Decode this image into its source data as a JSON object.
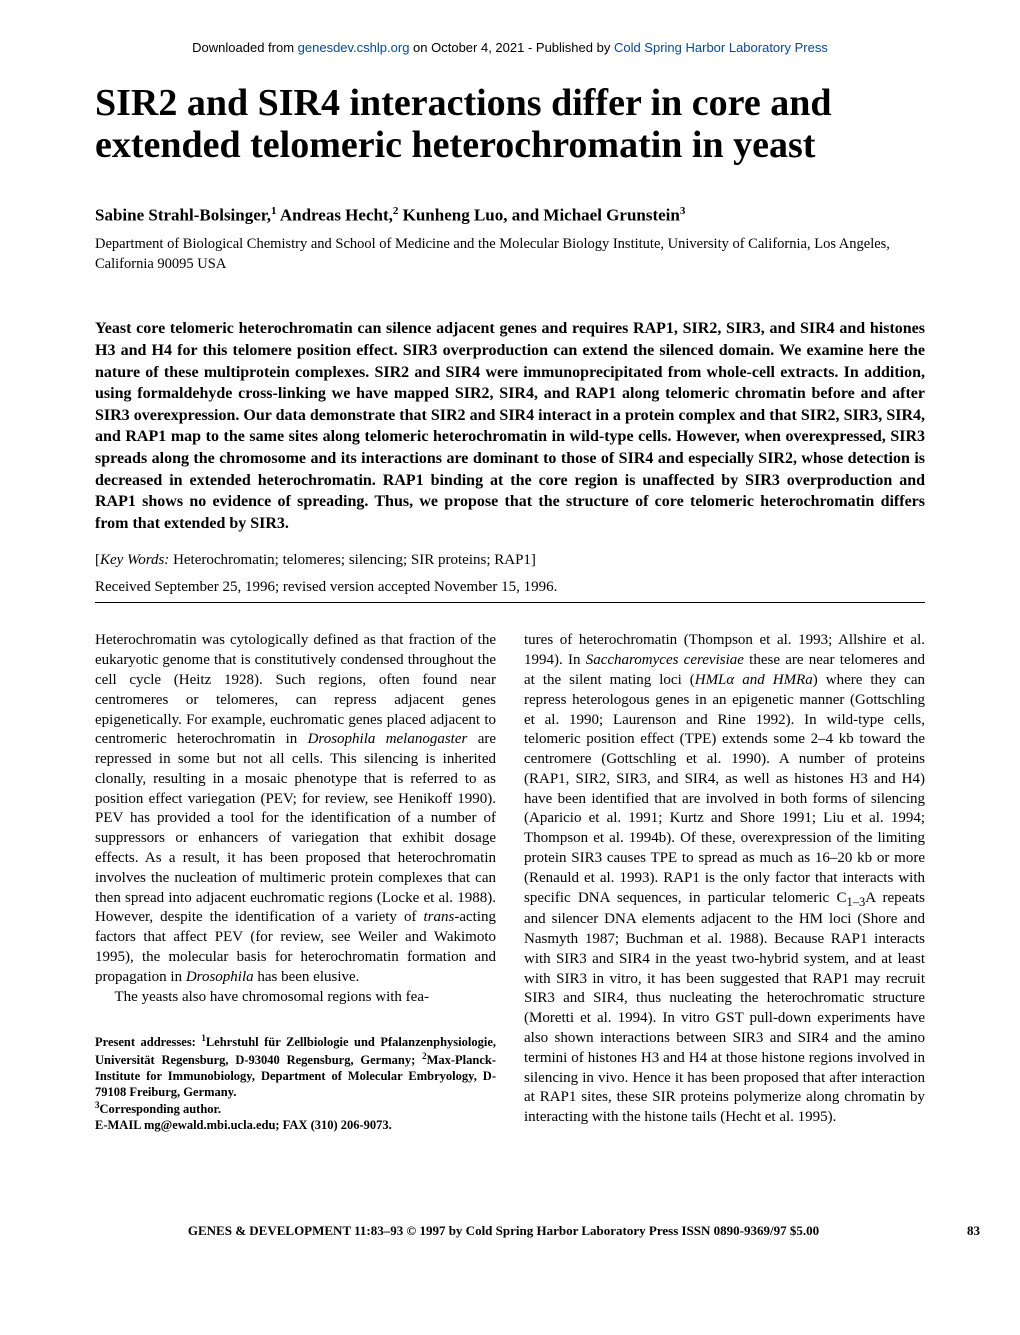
{
  "banner": {
    "prefix": "Downloaded from ",
    "link1_text": "genesdev.cshlp.org",
    "mid": " on October 4, 2021 - Published by ",
    "link2_text": "Cold Spring Harbor Laboratory Press"
  },
  "title": "SIR2 and SIR4 interactions differ in core and extended telomeric heterochromatin in yeast",
  "authors_html": "Sabine Strahl-Bolsinger,<sup>1</sup> Andreas Hecht,<sup>2</sup> Kunheng Luo, and Michael Grunstein<sup>3</sup>",
  "affiliation": "Department of Biological Chemistry and School of Medicine and the Molecular Biology Institute, University of California, Los Angeles, California 90095 USA",
  "abstract": "Yeast core telomeric heterochromatin can silence adjacent genes and requires RAP1, SIR2, SIR3, and SIR4 and histones H3 and H4 for this telomere position effect. SIR3 overproduction can extend the silenced domain. We examine here the nature of these multiprotein complexes. SIR2 and SIR4 were immunoprecipitated from whole-cell extracts. In addition, using formaldehyde cross-linking we have mapped SIR2, SIR4, and RAP1 along telomeric chromatin before and after SIR3 overexpression. Our data demonstrate that SIR2 and SIR4 interact in a protein complex and that SIR2, SIR3, SIR4, and RAP1 map to the same sites along telomeric heterochromatin in wild-type cells. However, when overexpressed, SIR3 spreads along the chromosome and its interactions are dominant to those of SIR4 and especially SIR2, whose detection is decreased in extended heterochromatin. RAP1 binding at the core region is unaffected by SIR3 overproduction and RAP1 shows no evidence of spreading. Thus, we propose that the structure of core telomeric heterochromatin differs from that extended by SIR3.",
  "keywords_label": "Key Words:",
  "keywords": " Heterochromatin; telomeres; silencing; SIR proteins; RAP1]",
  "received": "Received September 25, 1996; revised version accepted November 15, 1996.",
  "body": {
    "p1": "Heterochromatin was cytologically defined as that fraction of the eukaryotic genome that is constitutively condensed throughout the cell cycle (Heitz 1928). Such regions, often found near centromeres or telomeres, can repress adjacent genes epigenetically. For example, euchromatic genes placed adjacent to centromeric heterochromatin in Drosophila melanogaster are repressed in some but not all cells. This silencing is inherited clonally, resulting in a mosaic phenotype that is referred to as position effect variegation (PEV; for review, see Henikoff 1990). PEV has provided a tool for the identification of a number of suppressors or enhancers of variegation that exhibit dosage effects. As a result, it has been proposed that heterochromatin involves the nucleation of multimeric protein complexes that can then spread into adjacent euchromatic regions (Locke et al. 1988). However, despite the identification of a variety of trans-acting factors that affect PEV (for review, see Weiler and Wakimoto 1995), the molecular basis for heterochromatin formation and propagation in Drosophila has been elusive.",
    "p2": "The yeasts also have chromosomal regions with fea-",
    "p3": "tures of heterochromatin (Thompson et al. 1993; Allshire et al. 1994). In Saccharomyces cerevisiae these are near telomeres and at the silent mating loci (HMLα and HMRa) where they can repress heterologous genes in an epigenetic manner (Gottschling et al. 1990; Laurenson and Rine 1992). In wild-type cells, telomeric position effect (TPE) extends some 2–4 kb toward the centromere (Gottschling et al. 1990). A number of proteins (RAP1, SIR2, SIR3, and SIR4, as well as histones H3 and H4) have been identified that are involved in both forms of silencing (Aparicio et al. 1991; Kurtz and Shore 1991; Liu et al. 1994; Thompson et al. 1994b). Of these, overexpression of the limiting protein SIR3 causes TPE to spread as much as 16–20 kb or more (Renauld et al. 1993). RAP1 is the only factor that interacts with specific DNA sequences, in particular telomeric C₁₋₃A repeats and silencer DNA elements adjacent to the HM loci (Shore and Nasmyth 1987; Buchman et al. 1988). Because RAP1 interacts with SIR3 and SIR4 in the yeast two-hybrid system, and at least with SIR3 in vitro, it has been suggested that RAP1 may recruit SIR3 and SIR4, thus nucleating the heterochromatic structure (Moretti et al. 1994). In vitro GST pull-down experiments have also shown interactions between SIR3 and SIR4 and the amino termini of histones H3 and H4 at those histone regions involved in silencing in vivo. Hence it has been proposed that after interaction at RAP1 sites, these SIR proteins polymerize along chromatin by interacting with the histone tails (Hecht et al. 1995)."
  },
  "footnotes": {
    "address_label": "Present addresses: ",
    "address": "¹Lehrstuhl für Zellbiologie und Pfalanzenphysiologie, Universität Regensburg, D-93040 Regensburg, Germany; ²Max-Planck-Institute for Immunobiology, Department of Molecular Embryology, D-79108 Freiburg, Germany.",
    "corresponding": "³Corresponding author.",
    "email": "E-MAIL mg@ewald.mbi.ucla.edu; FAX (310) 206-9073."
  },
  "footer": {
    "citation": "GENES & DEVELOPMENT 11:83–93 © 1997 by Cold Spring Harbor Laboratory Press ISSN 0890-9369/97 $5.00",
    "page": "83"
  }
}
